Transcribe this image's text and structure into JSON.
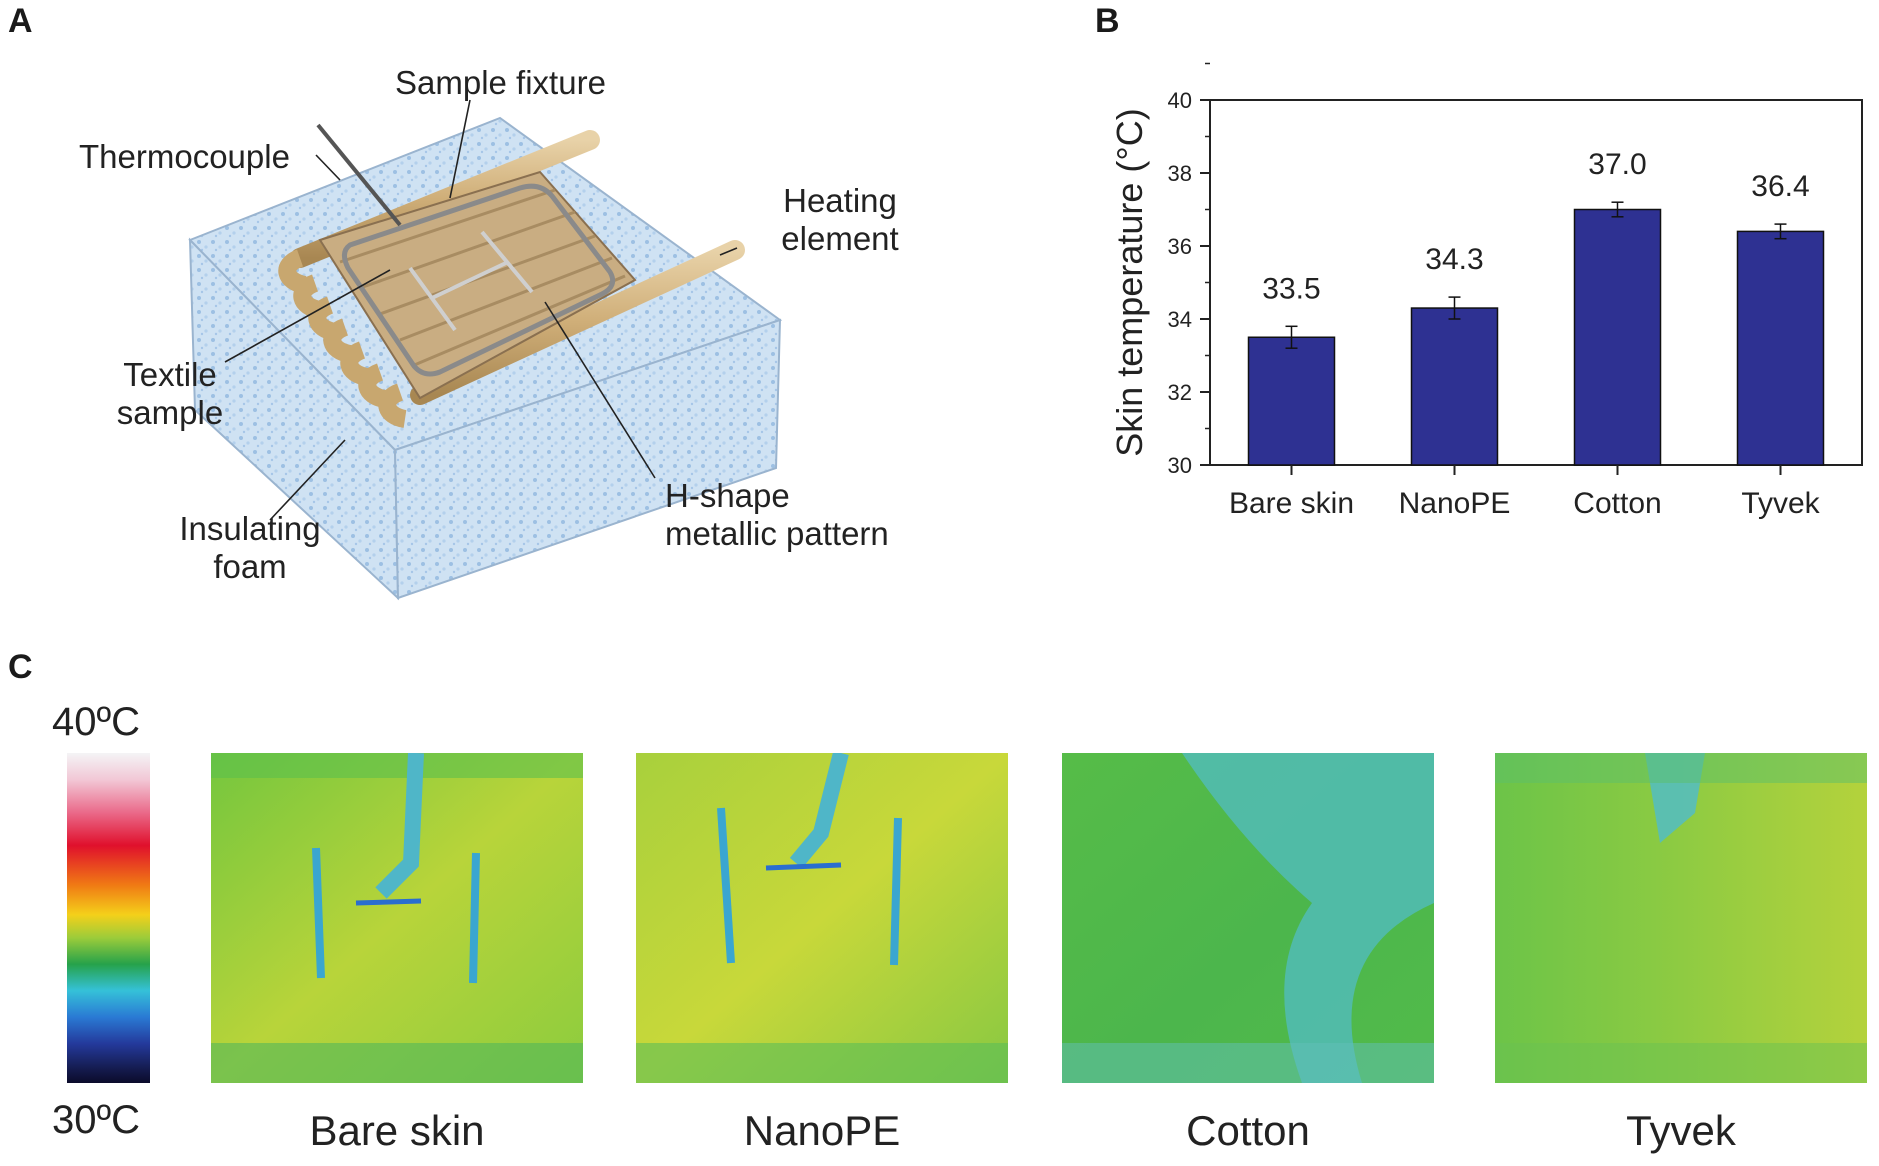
{
  "panels": {
    "a": "A",
    "b": "B",
    "c": "C"
  },
  "schematic": {
    "labels": {
      "sample_fixture": "Sample fixture",
      "thermocouple": "Thermocouple",
      "heating_1": "Heating",
      "heating_2": "element",
      "textile_1": "Textile",
      "textile_2": "sample",
      "insulating_1": "Insulating",
      "insulating_2": "foam",
      "hshape_1": "H-shape",
      "hshape_2": "metallic pattern"
    }
  },
  "chart_data": {
    "type": "bar",
    "categories": [
      "Bare skin",
      "NanoPE",
      "Cotton",
      "Tyvek"
    ],
    "values": [
      33.5,
      34.3,
      37.0,
      36.4
    ],
    "errors": [
      0.3,
      0.3,
      0.2,
      0.2
    ],
    "value_labels": [
      "33.5",
      "34.3",
      "37.0",
      "36.4"
    ],
    "ylabel": "Skin temperature (°C)",
    "ylim": [
      30,
      40
    ],
    "yticks": [
      30,
      32,
      34,
      36,
      38,
      40
    ],
    "bar_color": "#2e3192",
    "grid": false
  },
  "thermal": {
    "scale_max": "40ºC",
    "scale_min": "30ºC",
    "maps": [
      {
        "label": "Bare skin",
        "theme": "h-pattern"
      },
      {
        "label": "NanoPE",
        "theme": "h-pattern"
      },
      {
        "label": "Cotton",
        "theme": "uniform-cool"
      },
      {
        "label": "Tyvek",
        "theme": "faint"
      }
    ]
  }
}
